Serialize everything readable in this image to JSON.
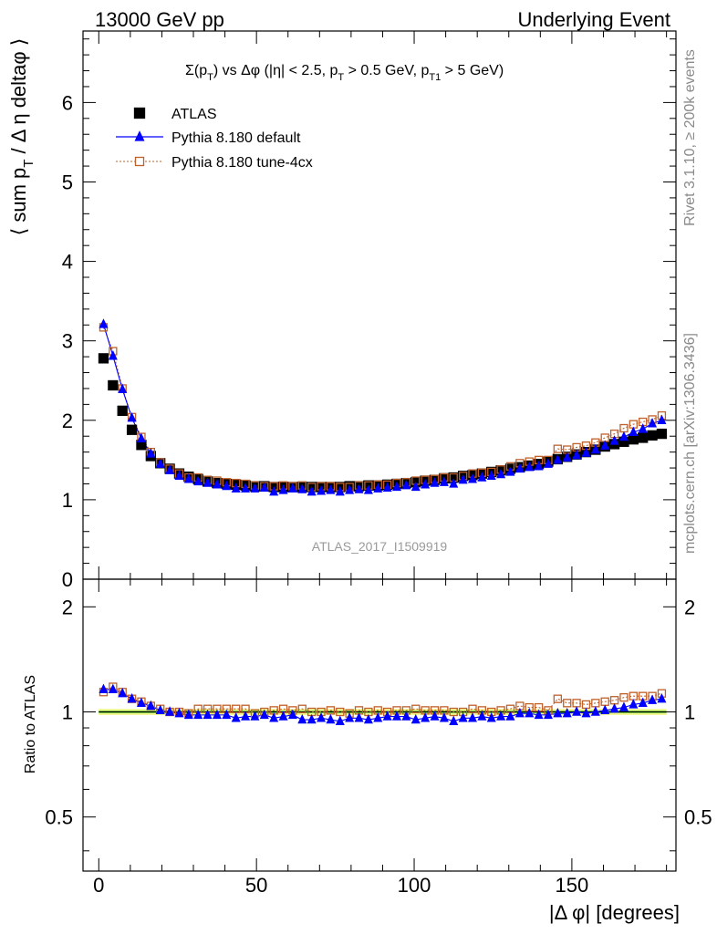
{
  "header": {
    "left": "13000 GeV pp",
    "right": "Underlying Event"
  },
  "side_labels": {
    "rivet": "Rivet 3.1.10, ≥ 200k events",
    "mcplots": "mcplots.cern.ch [arXiv:1306.3436]"
  },
  "watermark": "ATLAS_2017_I1509919",
  "colors": {
    "atlas": "#000000",
    "default": "#0000ff",
    "tune": "#c0602a",
    "band_outer": "#f2f78a",
    "band_inner": "#00cc00"
  },
  "chart_data": [
    {
      "type": "scatter",
      "title": "Σ(pT) vs Δφ (|η| < 2.5, pT > 0.5 GeV, pT1 > 5 GeV)",
      "ylabel": "⟨ sum pT / Δη deltaφ ⟩",
      "xlim": [
        -5,
        183
      ],
      "ylim": [
        0,
        6.9
      ],
      "yticks": [
        "0",
        "1",
        "2",
        "3",
        "4",
        "5",
        "6"
      ],
      "legend_position": "top-left",
      "x": [
        1.5,
        4.5,
        7.5,
        10.5,
        13.5,
        16.5,
        19.5,
        22.5,
        25.5,
        28.5,
        31.5,
        34.5,
        37.5,
        40.5,
        43.5,
        46.5,
        49.5,
        52.5,
        55.5,
        58.5,
        61.5,
        64.5,
        67.5,
        70.5,
        73.5,
        76.5,
        79.5,
        82.5,
        85.5,
        88.5,
        91.5,
        94.5,
        97.5,
        100.5,
        103.5,
        106.5,
        109.5,
        112.5,
        115.5,
        118.5,
        121.5,
        124.5,
        127.5,
        130.5,
        133.5,
        136.5,
        139.5,
        142.5,
        145.5,
        148.5,
        151.5,
        154.5,
        157.5,
        160.5,
        163.5,
        166.5,
        169.5,
        172.5,
        175.5,
        178.5
      ],
      "series": [
        {
          "name": "ATLAS",
          "marker": "filled-square",
          "values": [
            2.78,
            2.44,
            2.12,
            1.88,
            1.69,
            1.55,
            1.46,
            1.39,
            1.33,
            1.29,
            1.26,
            1.23,
            1.21,
            1.2,
            1.19,
            1.18,
            1.17,
            1.17,
            1.16,
            1.16,
            1.16,
            1.16,
            1.16,
            1.16,
            1.16,
            1.16,
            1.17,
            1.17,
            1.18,
            1.18,
            1.19,
            1.2,
            1.21,
            1.22,
            1.24,
            1.25,
            1.27,
            1.28,
            1.3,
            1.31,
            1.33,
            1.35,
            1.37,
            1.39,
            1.41,
            1.43,
            1.45,
            1.48,
            1.51,
            1.54,
            1.57,
            1.6,
            1.63,
            1.67,
            1.7,
            1.73,
            1.76,
            1.78,
            1.81,
            1.83
          ]
        },
        {
          "name": "Pythia 8.180 default",
          "marker": "triangle",
          "values": [
            3.21,
            2.81,
            2.39,
            2.03,
            1.77,
            1.58,
            1.45,
            1.37,
            1.3,
            1.26,
            1.23,
            1.21,
            1.19,
            1.17,
            1.14,
            1.14,
            1.14,
            1.15,
            1.1,
            1.12,
            1.14,
            1.13,
            1.1,
            1.11,
            1.12,
            1.1,
            1.12,
            1.13,
            1.12,
            1.14,
            1.15,
            1.16,
            1.18,
            1.16,
            1.19,
            1.21,
            1.22,
            1.2,
            1.25,
            1.26,
            1.28,
            1.3,
            1.32,
            1.35,
            1.39,
            1.41,
            1.42,
            1.45,
            1.5,
            1.53,
            1.56,
            1.59,
            1.63,
            1.68,
            1.74,
            1.79,
            1.85,
            1.89,
            1.96,
            2.0
          ]
        },
        {
          "name": "Pythia 8.180 tune-4cx",
          "marker": "open-square",
          "values": [
            3.17,
            2.87,
            2.4,
            2.04,
            1.79,
            1.6,
            1.47,
            1.39,
            1.33,
            1.28,
            1.28,
            1.25,
            1.24,
            1.22,
            1.21,
            1.2,
            1.18,
            1.17,
            1.17,
            1.18,
            1.17,
            1.18,
            1.16,
            1.17,
            1.17,
            1.16,
            1.16,
            1.18,
            1.18,
            1.19,
            1.19,
            1.21,
            1.22,
            1.24,
            1.25,
            1.26,
            1.28,
            1.28,
            1.3,
            1.33,
            1.34,
            1.35,
            1.38,
            1.42,
            1.46,
            1.48,
            1.5,
            1.5,
            1.64,
            1.63,
            1.66,
            1.68,
            1.72,
            1.78,
            1.83,
            1.9,
            1.95,
            1.98,
            2.01,
            2.06
          ]
        }
      ]
    },
    {
      "type": "scatter",
      "ylabel": "Ratio to ATLAS",
      "xlabel": "|Δ φ| [degrees]",
      "xlim": [
        -5,
        183
      ],
      "ylim": [
        0.35,
        2.4
      ],
      "xticks": [
        "0",
        "50",
        "100",
        "150"
      ],
      "yticks": [
        "0.5",
        "1",
        "2"
      ],
      "reference": 1.0,
      "x": [
        1.5,
        4.5,
        7.5,
        10.5,
        13.5,
        16.5,
        19.5,
        22.5,
        25.5,
        28.5,
        31.5,
        34.5,
        37.5,
        40.5,
        43.5,
        46.5,
        49.5,
        52.5,
        55.5,
        58.5,
        61.5,
        64.5,
        67.5,
        70.5,
        73.5,
        76.5,
        79.5,
        82.5,
        85.5,
        88.5,
        91.5,
        94.5,
        97.5,
        100.5,
        103.5,
        106.5,
        109.5,
        112.5,
        115.5,
        118.5,
        121.5,
        124.5,
        127.5,
        130.5,
        133.5,
        136.5,
        139.5,
        142.5,
        145.5,
        148.5,
        151.5,
        154.5,
        157.5,
        160.5,
        163.5,
        166.5,
        169.5,
        172.5,
        175.5,
        178.5
      ],
      "series": [
        {
          "name": "Pythia 8.180 default",
          "values": [
            1.16,
            1.16,
            1.13,
            1.09,
            1.06,
            1.04,
            1.01,
            1.0,
            0.99,
            0.98,
            0.98,
            0.98,
            0.98,
            0.98,
            0.96,
            0.97,
            0.97,
            0.98,
            0.96,
            0.97,
            0.98,
            0.95,
            0.95,
            0.96,
            0.95,
            0.94,
            0.96,
            0.96,
            0.95,
            0.96,
            0.97,
            0.97,
            0.97,
            0.95,
            0.96,
            0.97,
            0.96,
            0.94,
            0.96,
            0.96,
            0.97,
            0.96,
            0.97,
            0.97,
            0.99,
            0.99,
            0.98,
            0.98,
            0.99,
            0.99,
            1.0,
            0.99,
            1.0,
            1.01,
            1.02,
            1.03,
            1.05,
            1.06,
            1.08,
            1.09
          ]
        },
        {
          "name": "Pythia 8.180 tune-4cx",
          "values": [
            1.14,
            1.18,
            1.14,
            1.09,
            1.07,
            1.04,
            1.02,
            1.0,
            1.0,
            0.99,
            1.02,
            1.02,
            1.02,
            1.02,
            1.02,
            1.02,
            0.99,
            1.0,
            1.01,
            1.02,
            1.01,
            1.02,
            1.0,
            1.0,
            1.01,
            1.0,
            0.99,
            1.01,
            1.0,
            1.01,
            1.0,
            1.01,
            1.01,
            1.02,
            1.01,
            1.01,
            1.01,
            1.0,
            1.0,
            1.02,
            1.01,
            1.0,
            1.01,
            1.02,
            1.04,
            1.03,
            1.03,
            1.01,
            1.09,
            1.06,
            1.06,
            1.05,
            1.06,
            1.07,
            1.08,
            1.1,
            1.11,
            1.11,
            1.11,
            1.13
          ]
        }
      ]
    }
  ]
}
